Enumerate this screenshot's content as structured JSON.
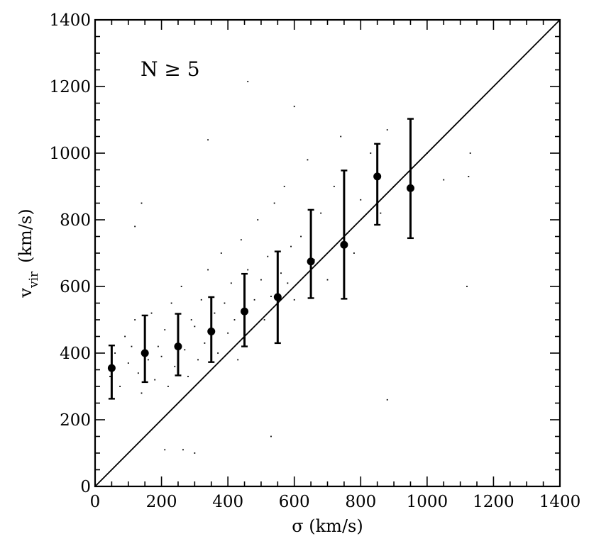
{
  "chart_data": {
    "type": "scatter",
    "title": "",
    "xlabel": "σ (km/s)",
    "ylabel_main": "v",
    "ylabel_sub": "vir",
    "ylabel_units": "(km/s)",
    "annotation": "N ≥ 5",
    "xlim": [
      0,
      1400
    ],
    "ylim": [
      0,
      1400
    ],
    "xticks": [
      0,
      200,
      400,
      600,
      800,
      1000,
      1200,
      1400
    ],
    "yticks": [
      0,
      200,
      400,
      600,
      800,
      1000,
      1200,
      1400
    ],
    "minor_tick_step": 50,
    "grid": false,
    "legend": "none",
    "reference_line": {
      "name": "one-to-one",
      "x": [
        0,
        1400
      ],
      "y": [
        0,
        1400
      ]
    },
    "binned_means": {
      "x": [
        50,
        150,
        250,
        350,
        450,
        550,
        650,
        750,
        850,
        950
      ],
      "y": [
        355,
        400,
        420,
        465,
        525,
        568,
        675,
        725,
        930,
        895
      ],
      "err_low": [
        263,
        313,
        333,
        373,
        420,
        430,
        565,
        563,
        785,
        745
      ],
      "err_high": [
        423,
        513,
        518,
        568,
        638,
        705,
        830,
        948,
        1028,
        1103
      ]
    },
    "scatter_sample": {
      "x": [
        45,
        60,
        75,
        90,
        100,
        110,
        120,
        130,
        140,
        150,
        160,
        170,
        180,
        190,
        200,
        210,
        220,
        230,
        240,
        250,
        260,
        270,
        280,
        290,
        300,
        310,
        320,
        330,
        340,
        350,
        360,
        370,
        380,
        390,
        400,
        410,
        420,
        430,
        440,
        450,
        460,
        470,
        480,
        490,
        500,
        510,
        520,
        530,
        540,
        550,
        560,
        570,
        580,
        590,
        600,
        620,
        640,
        660,
        680,
        700,
        720,
        740,
        760,
        780,
        800,
        830,
        860,
        880,
        900,
        950,
        1000,
        1050,
        1120,
        1130,
        1125,
        265,
        300,
        210,
        340,
        600,
        880,
        460,
        530,
        120,
        140
      ],
      "y": [
        330,
        400,
        300,
        450,
        370,
        420,
        500,
        340,
        280,
        460,
        380,
        520,
        320,
        420,
        390,
        470,
        300,
        550,
        360,
        440,
        600,
        410,
        330,
        500,
        480,
        380,
        560,
        430,
        650,
        470,
        520,
        400,
        700,
        550,
        460,
        610,
        500,
        380,
        740,
        530,
        650,
        470,
        560,
        800,
        620,
        500,
        690,
        570,
        850,
        520,
        640,
        900,
        610,
        720,
        560,
        750,
        980,
        680,
        820,
        620,
        900,
        1050,
        760,
        700,
        860,
        1000,
        820,
        1070,
        900,
        960,
        1000,
        920,
        600,
        1000,
        930,
        110,
        100,
        110,
        1040,
        1140,
        260,
        1215,
        150,
        780,
        850
      ]
    }
  }
}
